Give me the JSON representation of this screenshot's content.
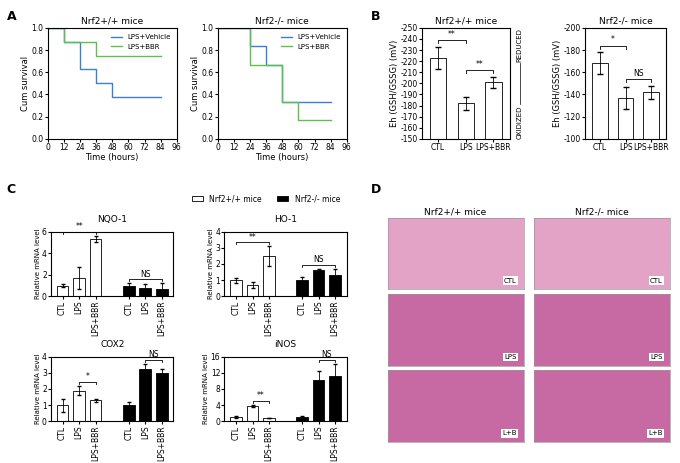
{
  "panel_labels": [
    "A",
    "B",
    "C",
    "D"
  ],
  "chart_data": [
    {
      "type": "line",
      "title": "Nrf2+/+ mice",
      "xlabel": "Time (hours)",
      "ylabel": "Cum survival",
      "xlim": [
        0,
        96
      ],
      "xticks": [
        0,
        12,
        24,
        36,
        48,
        60,
        72,
        84,
        96
      ],
      "ylim": [
        0.0,
        1.0
      ],
      "yticks": [
        0.0,
        0.2,
        0.4,
        0.6,
        0.8,
        1.0
      ],
      "legend": "upper right",
      "series": [
        {
          "name": "LPS+Vehicle",
          "color": "#3d7fd6",
          "line_style": "steps",
          "x": [
            0,
            12,
            24,
            36,
            48,
            84
          ],
          "values": [
            1.0,
            0.875,
            0.625,
            0.5,
            0.375,
            0.375
          ]
        },
        {
          "name": "LPS+BBR",
          "color": "#5cc04a",
          "line_style": "steps",
          "x": [
            0,
            12,
            36,
            84
          ],
          "values": [
            1.0,
            0.875,
            0.75,
            0.75
          ]
        }
      ]
    },
    {
      "type": "line",
      "title": "Nrf2-/- mice",
      "xlabel": "Time (hours)",
      "ylabel": "Cum survival",
      "xlim": [
        0,
        96
      ],
      "xticks": [
        0,
        12,
        24,
        36,
        48,
        60,
        72,
        84,
        96
      ],
      "ylim": [
        0.0,
        1.0
      ],
      "yticks": [
        0.0,
        0.2,
        0.4,
        0.6,
        0.8,
        1.0
      ],
      "legend": "upper right",
      "series": [
        {
          "name": "LPS+Vehicle",
          "color": "#3d7fd6",
          "line_style": "steps",
          "x": [
            0,
            24,
            36,
            48,
            84
          ],
          "values": [
            1.0,
            0.833,
            0.667,
            0.333,
            0.333
          ]
        },
        {
          "name": "LPS+BBR",
          "color": "#5cc04a",
          "line_style": "steps",
          "x": [
            0,
            24,
            48,
            60,
            84
          ],
          "values": [
            1.0,
            0.667,
            0.333,
            0.167,
            0.167
          ]
        }
      ]
    },
    {
      "type": "bar",
      "title": "Nrf2+/+ mice",
      "ylabel": "Eh (GSH/GSSG) (mV)",
      "categories": [
        "CTL",
        "LPS",
        "LPS+BBR"
      ],
      "values": [
        -223,
        -182,
        -201
      ],
      "errors": [
        10,
        6,
        5
      ],
      "color": "#ffffff",
      "ylim": [
        -150,
        -250
      ],
      "yticks": [
        -250,
        -240,
        -230,
        -220,
        -210,
        -200,
        -190,
        -180,
        -170,
        -160,
        -150
      ],
      "annotations": [
        "REDUCED",
        "OXIDIZED"
      ],
      "significance": [
        {
          "pair": [
            "CTL",
            "LPS"
          ],
          "text": "**"
        },
        {
          "pair": [
            "LPS",
            "LPS+BBR"
          ],
          "text": "**"
        }
      ]
    },
    {
      "type": "bar",
      "title": "Nrf2-/- mice",
      "ylabel": "Eh (GSH/GSSG) (mV)",
      "categories": [
        "CTL",
        "LPS",
        "LPS+BBR"
      ],
      "values": [
        -168,
        -137,
        -142
      ],
      "errors": [
        10,
        10,
        6
      ],
      "color": "#ffffff",
      "ylim": [
        -100,
        -200
      ],
      "yticks": [
        -200,
        -180,
        -160,
        -140,
        -120,
        -100
      ],
      "significance": [
        {
          "pair": [
            "CTL",
            "LPS"
          ],
          "text": "*"
        },
        {
          "pair": [
            "LPS",
            "LPS+BBR"
          ],
          "text": "NS"
        }
      ]
    },
    {
      "type": "bar",
      "title": "NQO-1",
      "ylabel": "Relative mRNA level",
      "categories": [
        "CTL",
        "LPS",
        "LPS+BBR"
      ],
      "ylim": [
        0,
        6
      ],
      "yticks": [
        0,
        2,
        4,
        6
      ],
      "legend": "upper right",
      "series": [
        {
          "name": "Nrf2+/+ mice",
          "color": "#ffffff",
          "values": [
            1.0,
            1.7,
            5.3
          ],
          "errors": [
            0.15,
            1.0,
            0.3
          ]
        },
        {
          "name": "Nrf2-/- mice",
          "color": "#000000",
          "values": [
            1.0,
            0.8,
            0.7
          ],
          "errors": [
            0.2,
            0.3,
            0.5
          ]
        }
      ],
      "significance": [
        {
          "series": "Nrf2+/+ mice",
          "pair": [
            "CTL",
            "LPS+BBR"
          ],
          "text": "**"
        },
        {
          "series": "Nrf2-/- mice",
          "pair": [
            "CTL",
            "LPS+BBR"
          ],
          "text": "NS"
        }
      ]
    },
    {
      "type": "bar",
      "title": "HO-1",
      "ylabel": "Relative mRNA level",
      "categories": [
        "CTL",
        "LPS",
        "LPS+BBR"
      ],
      "ylim": [
        0,
        4
      ],
      "yticks": [
        0,
        1,
        2,
        3,
        4
      ],
      "series": [
        {
          "name": "Nrf2+/+ mice",
          "color": "#ffffff",
          "values": [
            1.0,
            0.7,
            2.5
          ],
          "errors": [
            0.15,
            0.2,
            0.6
          ]
        },
        {
          "name": "Nrf2-/- mice",
          "color": "#000000",
          "values": [
            1.0,
            1.6,
            1.3
          ],
          "errors": [
            0.2,
            0.1,
            0.4
          ]
        }
      ],
      "significance": [
        {
          "series": "Nrf2+/+ mice",
          "pair": [
            "CTL",
            "LPS+BBR"
          ],
          "text": "**"
        },
        {
          "series": "Nrf2-/- mice",
          "pair": [
            "CTL",
            "LPS+BBR"
          ],
          "text": "NS"
        }
      ]
    },
    {
      "type": "bar",
      "title": "COX2",
      "ylabel": "Relative mRNA level",
      "categories": [
        "CTL",
        "LPS",
        "LPS+BBR"
      ],
      "ylim": [
        0,
        4
      ],
      "yticks": [
        0,
        1,
        2,
        3,
        4
      ],
      "series": [
        {
          "name": "Nrf2+/+ mice",
          "color": "#ffffff",
          "values": [
            1.0,
            1.9,
            1.3
          ],
          "errors": [
            0.4,
            0.3,
            0.1
          ]
        },
        {
          "name": "Nrf2-/- mice",
          "color": "#000000",
          "values": [
            1.0,
            3.2,
            3.0
          ],
          "errors": [
            0.2,
            0.35,
            0.25
          ]
        }
      ],
      "significance": [
        {
          "series": "Nrf2+/+ mice",
          "pair": [
            "LPS",
            "LPS+BBR"
          ],
          "text": "*"
        },
        {
          "series": "Nrf2-/- mice",
          "pair": [
            "LPS",
            "LPS+BBR"
          ],
          "text": "NS"
        }
      ]
    },
    {
      "type": "bar",
      "title": "iNOS",
      "ylabel": "Relative mRNA level",
      "categories": [
        "CTL",
        "LPS",
        "LPS+BBR"
      ],
      "ylim": [
        0,
        16
      ],
      "yticks": [
        0,
        4,
        8,
        12,
        16
      ],
      "series": [
        {
          "name": "Nrf2+/+ mice",
          "color": "#ffffff",
          "values": [
            1.0,
            3.8,
            0.8
          ],
          "errors": [
            0.2,
            0.3,
            0.1
          ]
        },
        {
          "name": "Nrf2-/- mice",
          "color": "#000000",
          "values": [
            1.0,
            10.2,
            11.2
          ],
          "errors": [
            0.2,
            2.2,
            3.0
          ]
        }
      ],
      "significance": [
        {
          "series": "Nrf2+/+ mice",
          "pair": [
            "LPS",
            "LPS+BBR"
          ],
          "text": "**"
        },
        {
          "series": "Nrf2-/- mice",
          "pair": [
            "LPS",
            "LPS+BBR"
          ],
          "text": "NS"
        }
      ]
    }
  ],
  "images": {
    "columns": [
      "Nrf2+/+ mice",
      "Nrf2-/- mice"
    ],
    "rows": [
      "CTL",
      "LPS",
      "L+B"
    ]
  }
}
